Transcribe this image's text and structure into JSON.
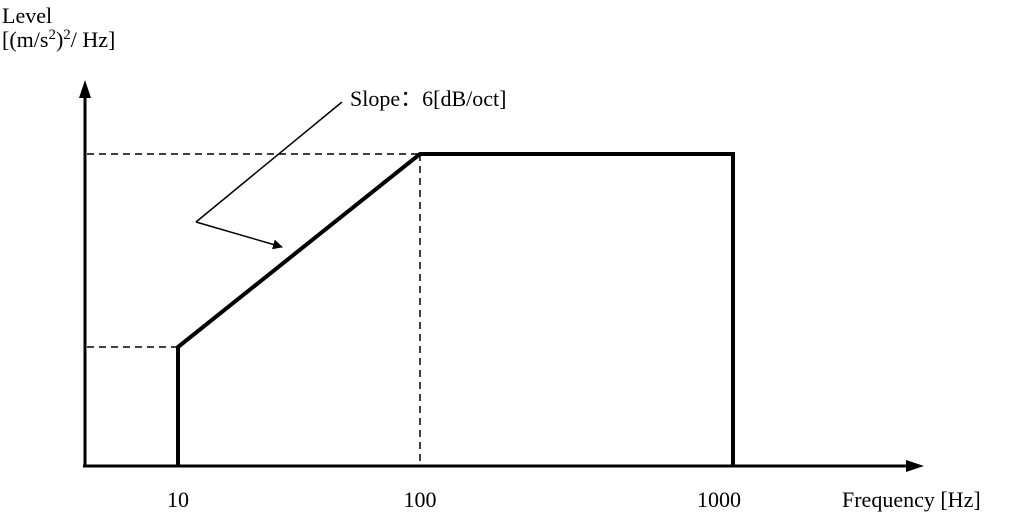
{
  "chart_data": {
    "type": "line",
    "ylabel_lines": [
      "Level",
      "[(m/s",
      "2",
      ")",
      "2",
      "/ Hz]"
    ],
    "xlabel": "Frequency [Hz]",
    "x_scale": "log",
    "x_ticks": [
      "10",
      "100",
      "1000"
    ],
    "series": [
      {
        "x": [
          10,
          10,
          100,
          1000,
          1000
        ],
        "y": [
          "0",
          "low",
          "high",
          "high",
          "0"
        ]
      }
    ],
    "annotation": "Slope：6[dB/oct]"
  }
}
